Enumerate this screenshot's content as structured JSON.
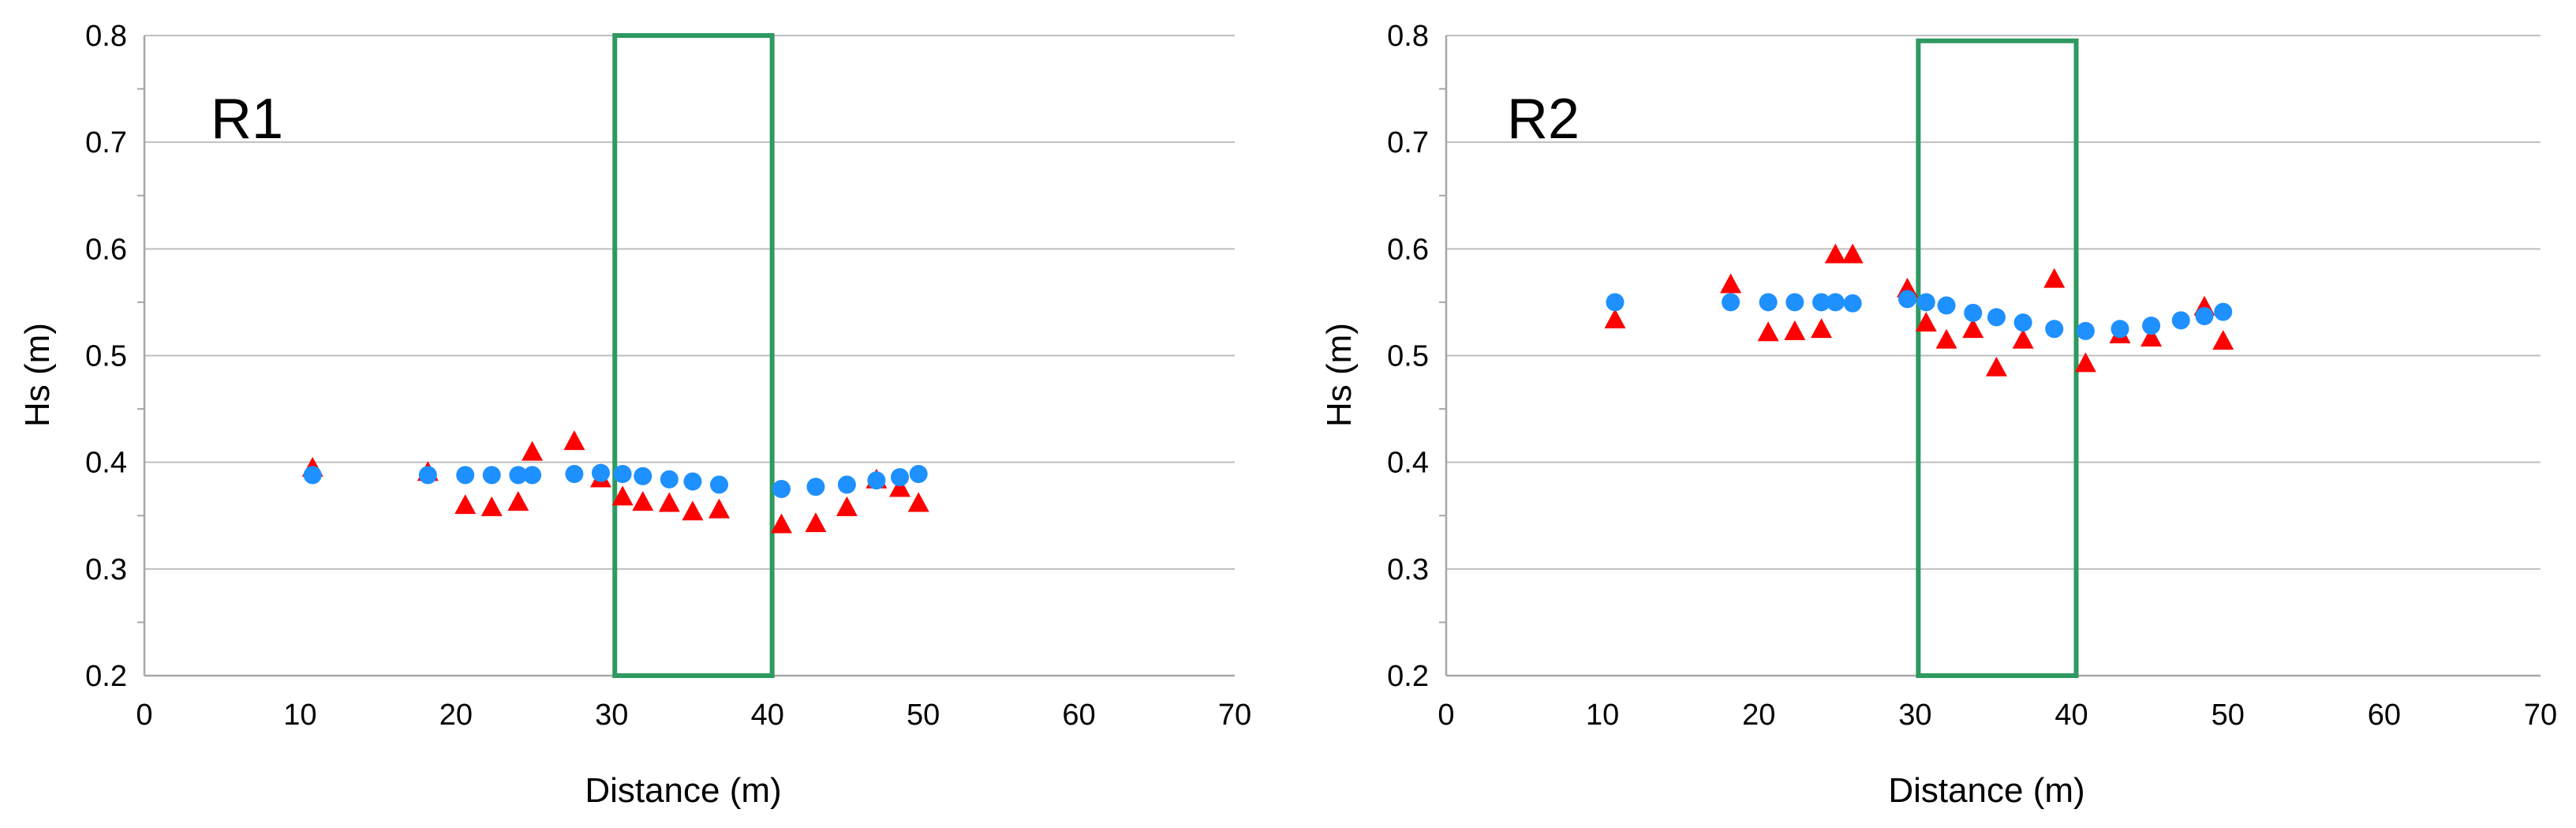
{
  "colors": {
    "circle_series": "#1E90FF",
    "triangle_series": "#FF0000",
    "highlight_box": "#2E9960",
    "gridline": "#BFBFBF",
    "axis": "#A6A6A6"
  },
  "chart_data": [
    {
      "type": "scatter",
      "panel_label": "R1",
      "xlabel": "Distance (m)",
      "ylabel": "Hs (m)",
      "xlim": [
        0,
        70
      ],
      "ylim": [
        0.2,
        0.8
      ],
      "xticks": [
        0,
        10,
        20,
        30,
        40,
        50,
        60,
        70
      ],
      "yticks": [
        0.2,
        0.3,
        0.4,
        0.5,
        0.6,
        0.7,
        0.8
      ],
      "grid": "horizontal",
      "highlight_region": {
        "x": [
          30.2,
          40.3
        ],
        "y": [
          0.2,
          0.8
        ]
      },
      "series": [
        {
          "marker": "circle",
          "color": "#1E90FF",
          "x": [
            10.8,
            18.2,
            20.6,
            22.3,
            24.0,
            24.9,
            27.6,
            29.3,
            30.7,
            32.0,
            33.7,
            35.2,
            36.9,
            40.9,
            43.1,
            45.1,
            47.0,
            48.5,
            49.7
          ],
          "y": [
            0.388,
            0.388,
            0.388,
            0.388,
            0.388,
            0.388,
            0.389,
            0.39,
            0.389,
            0.387,
            0.384,
            0.382,
            0.379,
            0.375,
            0.377,
            0.379,
            0.383,
            0.386,
            0.389
          ]
        },
        {
          "marker": "triangle",
          "color": "#FF0000",
          "x": [
            10.8,
            18.2,
            20.6,
            22.3,
            24.0,
            24.9,
            27.6,
            29.3,
            30.7,
            32.0,
            33.7,
            35.2,
            36.9,
            40.9,
            43.1,
            45.1,
            47.0,
            48.5,
            49.7
          ],
          "y": [
            0.394,
            0.39,
            0.359,
            0.357,
            0.362,
            0.409,
            0.419,
            0.384,
            0.367,
            0.362,
            0.361,
            0.353,
            0.355,
            0.341,
            0.342,
            0.357,
            0.383,
            0.375,
            0.361
          ]
        }
      ]
    },
    {
      "type": "scatter",
      "panel_label": "R2",
      "xlabel": "Distance (m)",
      "ylabel": "Hs (m)",
      "xlim": [
        0,
        70
      ],
      "ylim": [
        0.2,
        0.8
      ],
      "xticks": [
        0,
        10,
        20,
        30,
        40,
        50,
        60,
        70
      ],
      "yticks": [
        0.2,
        0.3,
        0.4,
        0.5,
        0.6,
        0.7,
        0.8
      ],
      "grid": "horizontal",
      "highlight_region": {
        "x": [
          30.2,
          40.3
        ],
        "y": [
          0.2,
          0.795
        ]
      },
      "series": [
        {
          "marker": "circle",
          "color": "#1E90FF",
          "x": [
            10.8,
            18.2,
            20.6,
            22.3,
            24.0,
            24.9,
            26.0,
            29.5,
            30.7,
            32.0,
            33.7,
            35.2,
            36.9,
            38.9,
            40.9,
            43.1,
            45.1,
            47.0,
            48.5,
            49.7
          ],
          "y": [
            0.55,
            0.55,
            0.55,
            0.55,
            0.55,
            0.55,
            0.549,
            0.553,
            0.55,
            0.547,
            0.54,
            0.536,
            0.531,
            0.525,
            0.523,
            0.525,
            0.528,
            0.533,
            0.537,
            0.541
          ]
        },
        {
          "marker": "triangle",
          "color": "#FF0000",
          "x": [
            10.8,
            18.2,
            20.6,
            22.3,
            24.0,
            24.9,
            26.0,
            29.5,
            30.7,
            32.0,
            33.7,
            35.2,
            36.9,
            38.9,
            40.9,
            43.1,
            45.1,
            48.5,
            49.7
          ],
          "y": [
            0.533,
            0.566,
            0.521,
            0.522,
            0.524,
            0.594,
            0.594,
            0.562,
            0.53,
            0.514,
            0.524,
            0.488,
            0.514,
            0.571,
            0.492,
            0.519,
            0.516,
            0.545,
            0.513
          ]
        }
      ]
    }
  ]
}
